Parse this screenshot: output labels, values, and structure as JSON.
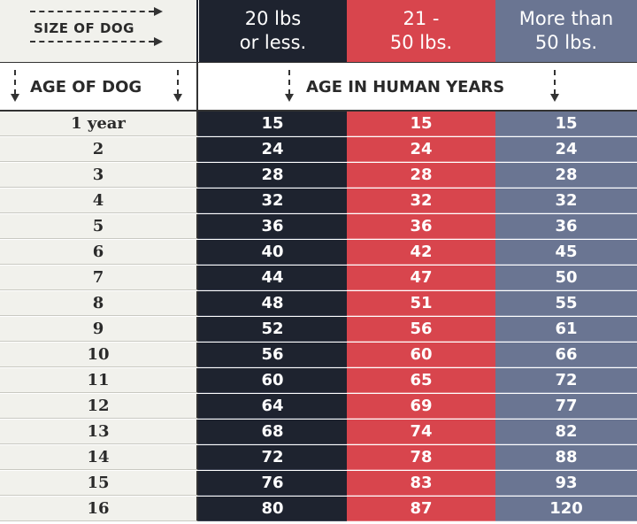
{
  "header": {
    "size_label": "SIZE OF DOG",
    "columns": [
      {
        "line1": "20 lbs",
        "line2": "or less."
      },
      {
        "line1": "21 -",
        "line2": "50 lbs."
      },
      {
        "line1": "More than",
        "line2": "50 lbs."
      }
    ]
  },
  "subheader": {
    "age_label": "AGE OF DOG",
    "human_label": "AGE IN HUMAN YEARS"
  },
  "colors": {
    "small": "#1e232f",
    "medium": "#d8454d",
    "large": "#6a7592",
    "label_bg": "#f1f1ec"
  },
  "rows": [
    {
      "age": "1 year",
      "small": "15",
      "medium": "15",
      "large": "15"
    },
    {
      "age": "2",
      "small": "24",
      "medium": "24",
      "large": "24"
    },
    {
      "age": "3",
      "small": "28",
      "medium": "28",
      "large": "28"
    },
    {
      "age": "4",
      "small": "32",
      "medium": "32",
      "large": "32"
    },
    {
      "age": "5",
      "small": "36",
      "medium": "36",
      "large": "36"
    },
    {
      "age": "6",
      "small": "40",
      "medium": "42",
      "large": "45"
    },
    {
      "age": "7",
      "small": "44",
      "medium": "47",
      "large": "50"
    },
    {
      "age": "8",
      "small": "48",
      "medium": "51",
      "large": "55"
    },
    {
      "age": "9",
      "small": "52",
      "medium": "56",
      "large": "61"
    },
    {
      "age": "10",
      "small": "56",
      "medium": "60",
      "large": "66"
    },
    {
      "age": "11",
      "small": "60",
      "medium": "65",
      "large": "72"
    },
    {
      "age": "12",
      "small": "64",
      "medium": "69",
      "large": "77"
    },
    {
      "age": "13",
      "small": "68",
      "medium": "74",
      "large": "82"
    },
    {
      "age": "14",
      "small": "72",
      "medium": "78",
      "large": "88"
    },
    {
      "age": "15",
      "small": "76",
      "medium": "83",
      "large": "93"
    },
    {
      "age": "16",
      "small": "80",
      "medium": "87",
      "large": "120"
    }
  ]
}
